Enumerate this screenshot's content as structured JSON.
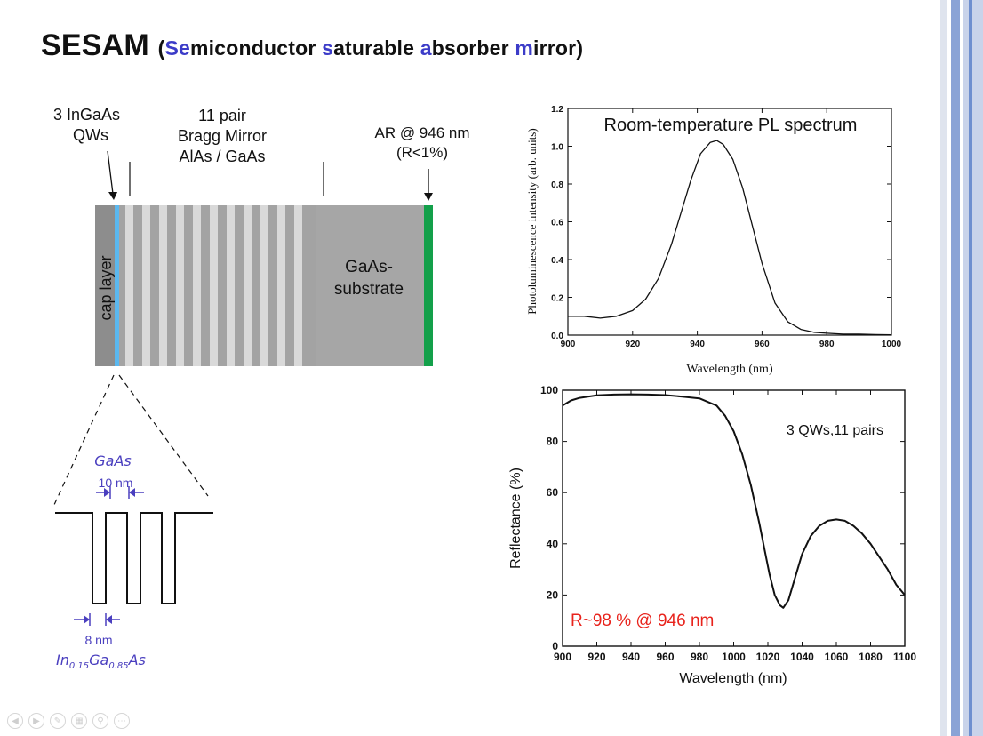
{
  "title": {
    "main": "SESAM",
    "open": "(",
    "p1_hl": "Se",
    "p1": "miconductor ",
    "p2_hl": "s",
    "p2": "aturable ",
    "p3_hl": "a",
    "p3": "bsorber ",
    "p4_hl": "m",
    "p4": "irror",
    "close": ")"
  },
  "structure": {
    "qw_label_1": "3 InGaAs",
    "qw_label_2": "QWs",
    "bragg_1": "11 pair",
    "bragg_2": "Bragg Mirror",
    "bragg_3": "AlAs / GaAs",
    "ar_1": "AR @ 946 nm",
    "ar_2": "(R<1%)",
    "cap_layer": "cap layer",
    "substrate_1": "GaAs-",
    "substrate_2": "substrate"
  },
  "well": {
    "gaas": "GaAs",
    "gaas_width": "10 nm",
    "well_width": "8 nm",
    "in_base": "In",
    "in_sub": "0.15",
    "ga_base": "Ga",
    "ga_sub": "0.85",
    "as_base": "As"
  },
  "colors": {
    "qw_blue": "#5bb8ef",
    "ar_green": "#13a04a",
    "layer_gray": "#a3a3a3",
    "highlight_blue": "#3c3cc8",
    "annotation_red": "#e8231c"
  },
  "chart_data": [
    {
      "type": "line",
      "title": "Room-temperature PL spectrum",
      "xlabel": "Wavelength (nm)",
      "ylabel": "Photoluminescence intensity (arb. units)",
      "xlim": [
        900,
        1000
      ],
      "ylim": [
        0,
        1.2
      ],
      "xticks": [
        "900",
        "920",
        "940",
        "960",
        "980",
        "1000"
      ],
      "yticks": [
        "0.0",
        "0.2",
        "0.4",
        "0.6",
        "0.8",
        "1.0",
        "1.2"
      ],
      "grid": false,
      "series": [
        {
          "x": [
            900,
            905,
            910,
            915,
            920,
            924,
            928,
            932,
            935,
            938,
            941,
            944,
            946,
            948,
            951,
            954,
            957,
            960,
            964,
            968,
            972,
            976,
            980,
            985,
            990,
            995,
            1000
          ],
          "y": [
            0.1,
            0.1,
            0.09,
            0.1,
            0.13,
            0.19,
            0.3,
            0.48,
            0.65,
            0.82,
            0.96,
            1.02,
            1.03,
            1.01,
            0.93,
            0.78,
            0.58,
            0.38,
            0.17,
            0.07,
            0.03,
            0.015,
            0.01,
            0.005,
            0.005,
            0.003,
            0.002
          ]
        }
      ]
    },
    {
      "type": "line",
      "xlabel": "Wavelength (nm)",
      "ylabel": "Reflectance (%)",
      "xlim": [
        900,
        1100
      ],
      "ylim": [
        0,
        100
      ],
      "xticks": [
        "900",
        "920",
        "940",
        "960",
        "980",
        "1000",
        "1020",
        "1040",
        "1060",
        "1080",
        "1100"
      ],
      "yticks": [
        "0",
        "20",
        "40",
        "60",
        "80",
        "100"
      ],
      "grid": false,
      "annotations": [
        "3 QWs,11 pairs",
        "R~98 % @ 946 nm"
      ],
      "series": [
        {
          "x": [
            900,
            905,
            910,
            920,
            930,
            940,
            950,
            960,
            970,
            980,
            990,
            995,
            1000,
            1005,
            1010,
            1015,
            1018,
            1021,
            1024,
            1027,
            1029,
            1032,
            1036,
            1040,
            1045,
            1050,
            1055,
            1060,
            1065,
            1070,
            1075,
            1080,
            1085,
            1090,
            1095,
            1100
          ],
          "y": [
            94,
            96,
            97,
            98,
            98.3,
            98.4,
            98.3,
            98.1,
            97.5,
            96.8,
            94,
            90,
            84,
            75,
            63,
            48,
            38,
            28,
            20,
            16,
            15,
            18,
            27,
            36,
            43,
            47,
            49,
            49.5,
            49,
            47,
            44,
            40,
            35,
            30,
            24,
            20
          ]
        }
      ]
    }
  ]
}
